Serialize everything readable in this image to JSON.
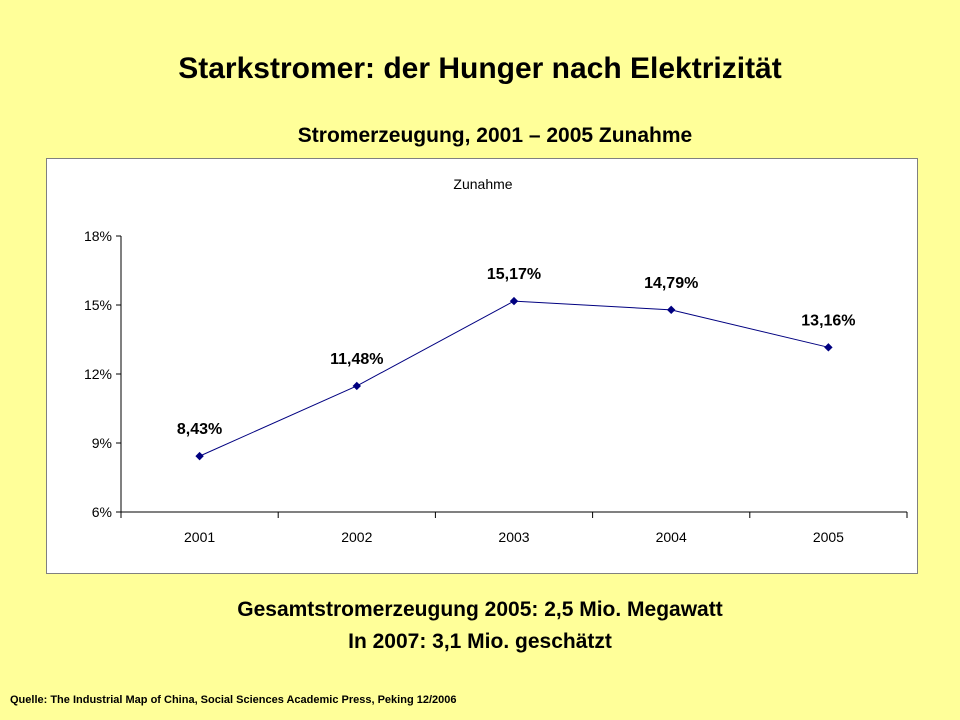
{
  "title": "Starkstromer: der Hunger nach Elektrizität",
  "subtitle": "Stromerzeugung, 2001 – 2005 Zunahme",
  "chart_data": {
    "type": "line",
    "title": "Zunahme",
    "categories": [
      "2001",
      "2002",
      "2003",
      "2004",
      "2005"
    ],
    "series": [
      {
        "values": [
          8.43,
          11.48,
          15.17,
          14.79,
          13.16
        ],
        "labels": [
          "8,43%",
          "11,48%",
          "15,17%",
          "14,79%",
          "13,16%"
        ]
      }
    ],
    "ylim": [
      6,
      18
    ],
    "yticks": [
      6,
      9,
      12,
      15,
      18
    ],
    "ytick_labels": [
      "6%",
      "9%",
      "12%",
      "15%",
      "18%"
    ],
    "grid": false,
    "line_color": "#000080",
    "marker_color": "#000080"
  },
  "footer": {
    "line1": "Gesamtstromerzeugung 2005: 2,5 Mio. Megawatt",
    "line2": "In 2007: 3,1 Mio. geschätzt"
  },
  "source": "Quelle: The Industrial Map of China, Social Sciences Academic Press, Peking 12/2006"
}
